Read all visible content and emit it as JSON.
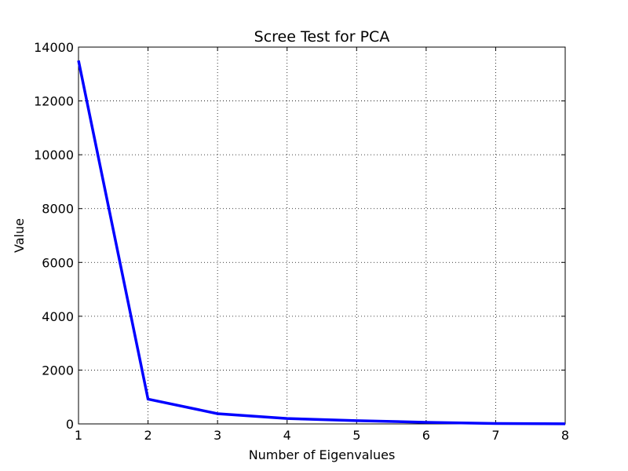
{
  "chart_data": {
    "type": "line",
    "title": "Scree Test for PCA",
    "xlabel": "Number of Eigenvalues",
    "ylabel": "Value",
    "xlim": [
      1,
      8
    ],
    "ylim": [
      0,
      14000
    ],
    "x_ticks": [
      "1",
      "2",
      "3",
      "4",
      "5",
      "6",
      "7",
      "8"
    ],
    "y_ticks": [
      "0",
      "2000",
      "4000",
      "6000",
      "8000",
      "10000",
      "12000",
      "14000"
    ],
    "grid": true,
    "series": [
      {
        "color": "#0000ff",
        "x": [
          1,
          2,
          3,
          4,
          5,
          6,
          7,
          8
        ],
        "values": [
          13500,
          920,
          380,
          200,
          120,
          60,
          15,
          5
        ]
      }
    ]
  }
}
